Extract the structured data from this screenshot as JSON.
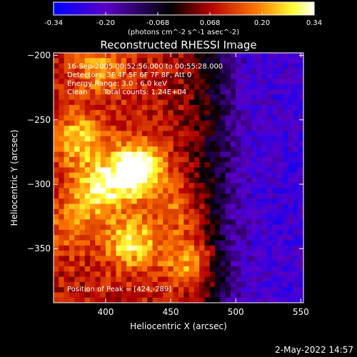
{
  "chart_data": {
    "type": "heatmap",
    "title": "Reconstructed RHESSI Image",
    "xlabel": "Heliocentric X (arcsec)",
    "ylabel": "Heliocentric Y (arcsec)",
    "xlim": [
      360,
      552
    ],
    "ylim": [
      -392,
      -198
    ],
    "x_ticks": [
      400,
      450,
      500,
      550
    ],
    "y_ticks": [
      -200,
      -250,
      -300,
      -350
    ],
    "colorbar": {
      "ticks": [
        "-0.34",
        "-0.20",
        "-0.068",
        "0.068",
        "0.20",
        "0.34"
      ],
      "range": [
        -0.34,
        0.34
      ],
      "unit": "(photons cm^-2 s^-1 asec^-2)",
      "colors": [
        "#0000ff",
        "#5a00c8",
        "#000000",
        "#b40000",
        "#ff7800",
        "#ffff32",
        "#ffffff"
      ]
    },
    "annotations": {
      "time": "16-Sep-2005 00:52:56.000 to 00:55:28.000",
      "detectors": "Detectors: 3F 4F 5F 6F 7F 8F, Att 0",
      "energy": "Energy Range: 3.0 - 6.0 keV",
      "clean": "Clean",
      "counts": "Total counts: 1.24E+04",
      "peak": "Position of Peak = [424,-289]"
    },
    "peak": [
      424,
      -289
    ],
    "sources": [
      {
        "x": 424,
        "y": -289,
        "value": 0.34
      },
      {
        "x": 380,
        "y": -265,
        "value": 0.17
      },
      {
        "x": 395,
        "y": -303,
        "value": 0.2
      },
      {
        "x": 420,
        "y": -345,
        "value": 0.2
      },
      {
        "x": 465,
        "y": -360,
        "value": 0.18
      },
      {
        "x": 395,
        "y": -210,
        "value": 0.12
      },
      {
        "x": 455,
        "y": -320,
        "value": 0.1
      },
      {
        "x": 375,
        "y": -330,
        "value": 0.11
      }
    ]
  },
  "footer": {
    "date": "2-May-2022 14:57"
  }
}
